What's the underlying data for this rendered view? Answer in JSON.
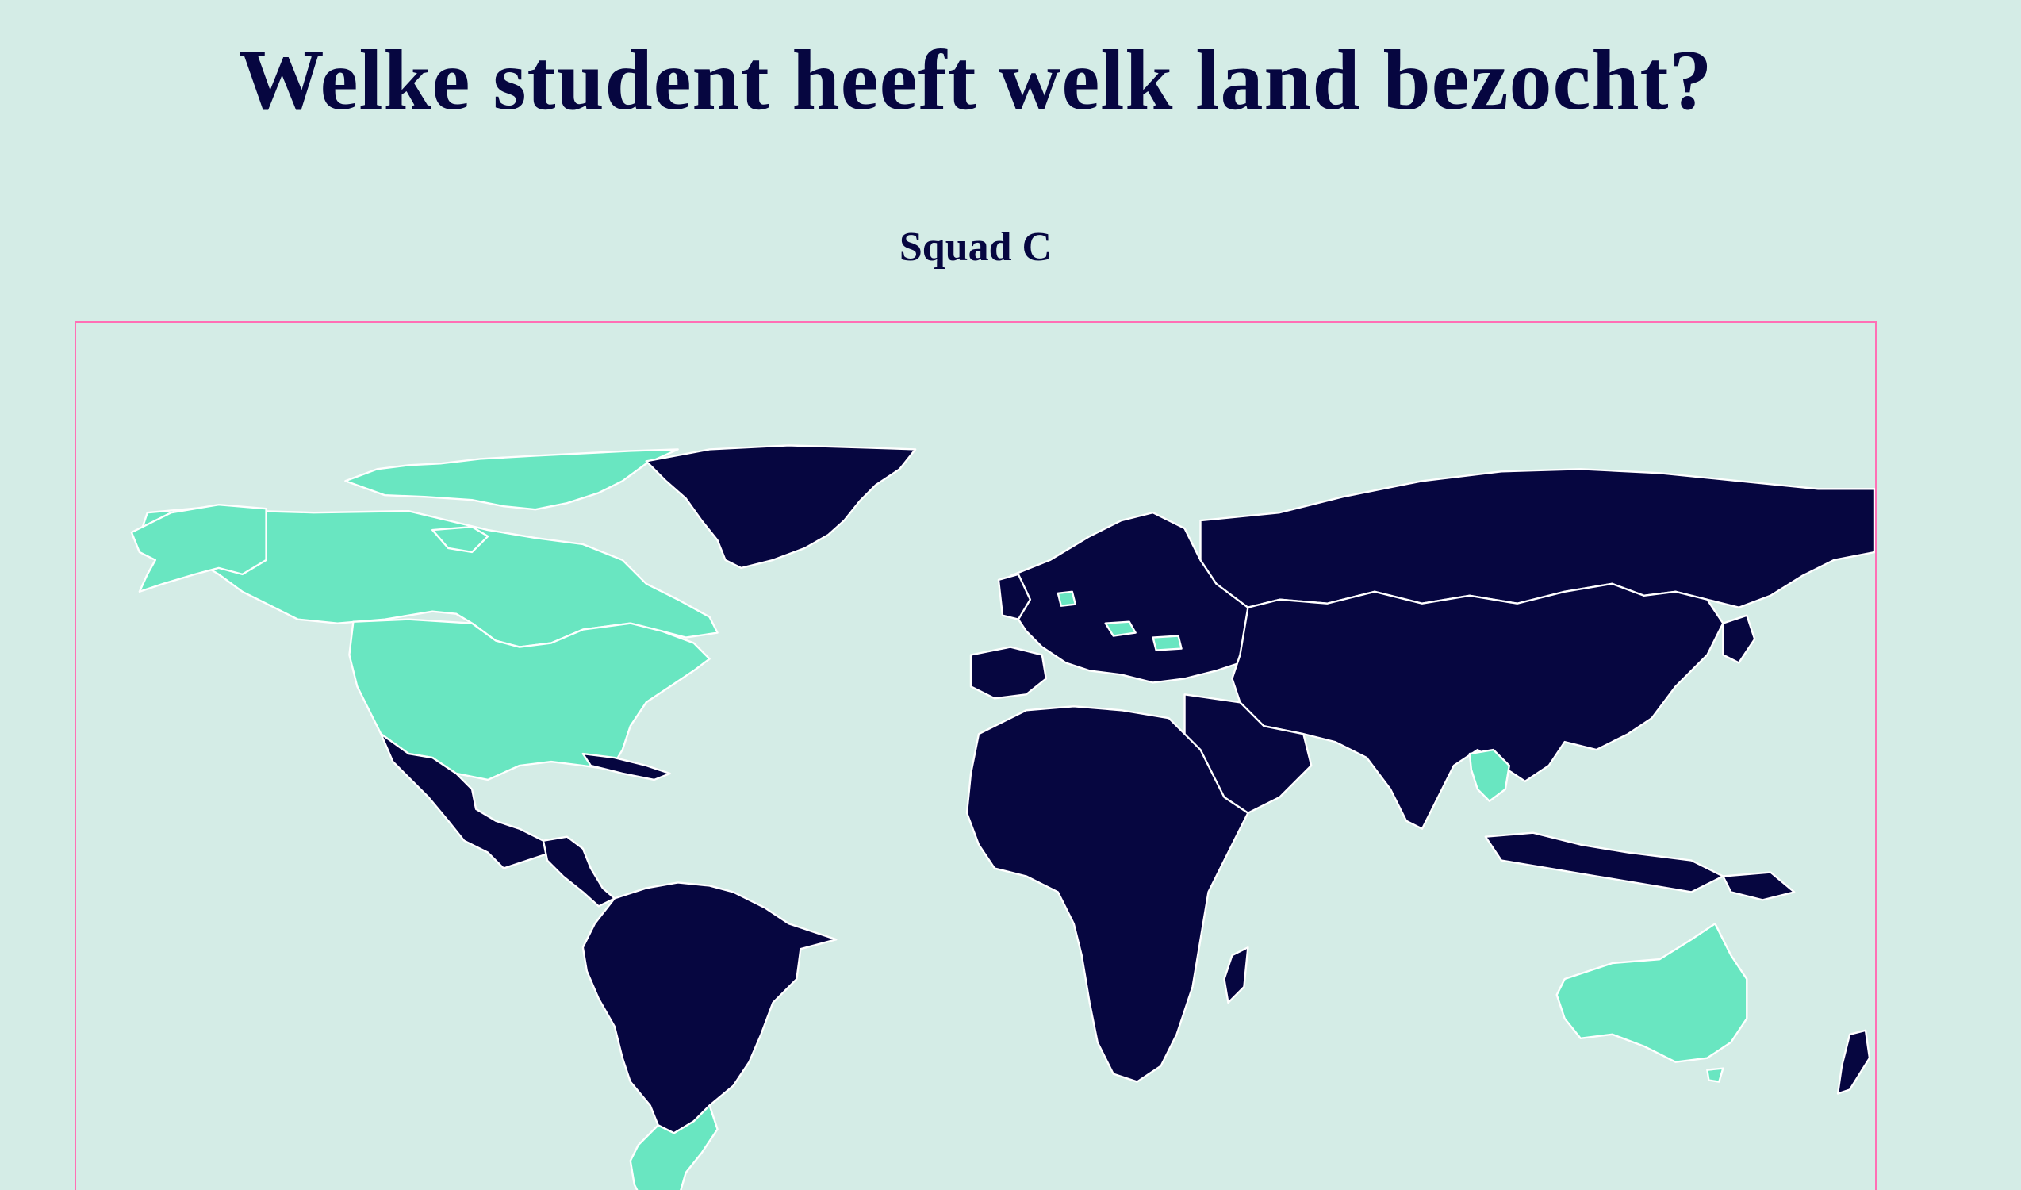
{
  "header": {
    "title": "Welke student heeft welk land bezocht?",
    "subtitle": "Squad C"
  },
  "colors": {
    "background": "#d4ece6",
    "text": "#060640",
    "unvisited": "#060640",
    "visited": "#69e6c1",
    "border": "#ffffff",
    "frame": "#ff6fb5"
  },
  "map": {
    "visited_countries": [
      "Canada",
      "United States",
      "Argentina",
      "Australia",
      "Thailand",
      "Hungary",
      "Bulgaria",
      "Netherlands"
    ]
  }
}
